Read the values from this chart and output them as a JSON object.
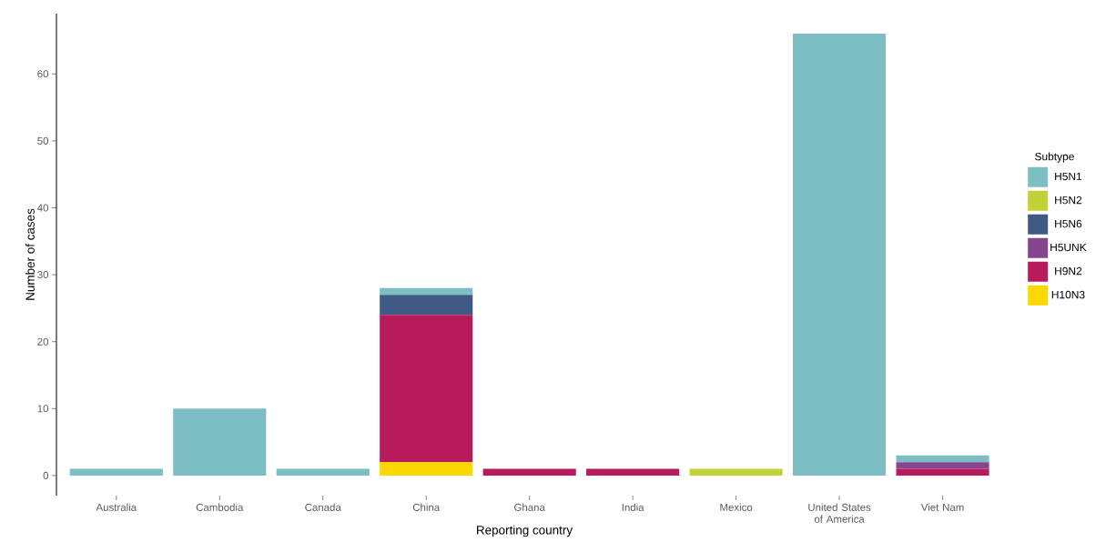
{
  "chart_data": {
    "type": "bar",
    "stacked": true,
    "xlabel": "Reporting country",
    "ylabel": "Number of cases",
    "legend_title": "Subtype",
    "legend": "right",
    "categories": [
      "Australia",
      "Cambodia",
      "Canada",
      "China",
      "Ghana",
      "India",
      "Mexico",
      "United States of America",
      "Viet Nam"
    ],
    "series": [
      {
        "name": "H10N3",
        "color": "#fcd800",
        "values": [
          0,
          0,
          0,
          2,
          0,
          0,
          0,
          0,
          0
        ]
      },
      {
        "name": "H9N2",
        "color": "#b81b5b",
        "values": [
          0,
          0,
          0,
          22,
          1,
          1,
          0,
          0,
          1
        ]
      },
      {
        "name": "H5UNK",
        "color": "#87448f",
        "values": [
          0,
          0,
          0,
          0,
          0,
          0,
          0,
          0,
          1
        ]
      },
      {
        "name": "H5N6",
        "color": "#3e5a85",
        "values": [
          0,
          0,
          0,
          3,
          0,
          0,
          0,
          0,
          0
        ]
      },
      {
        "name": "H5N2",
        "color": "#c2d135",
        "values": [
          0,
          0,
          0,
          0,
          0,
          0,
          1,
          0,
          0
        ]
      },
      {
        "name": "H5N1",
        "color": "#7dbdc4",
        "values": [
          1,
          10,
          1,
          1,
          0,
          0,
          0,
          66,
          1
        ]
      }
    ],
    "ylim": [
      -3,
      69
    ],
    "yticks": [
      0,
      10,
      20,
      30,
      40,
      50,
      60
    ],
    "grid": false
  }
}
